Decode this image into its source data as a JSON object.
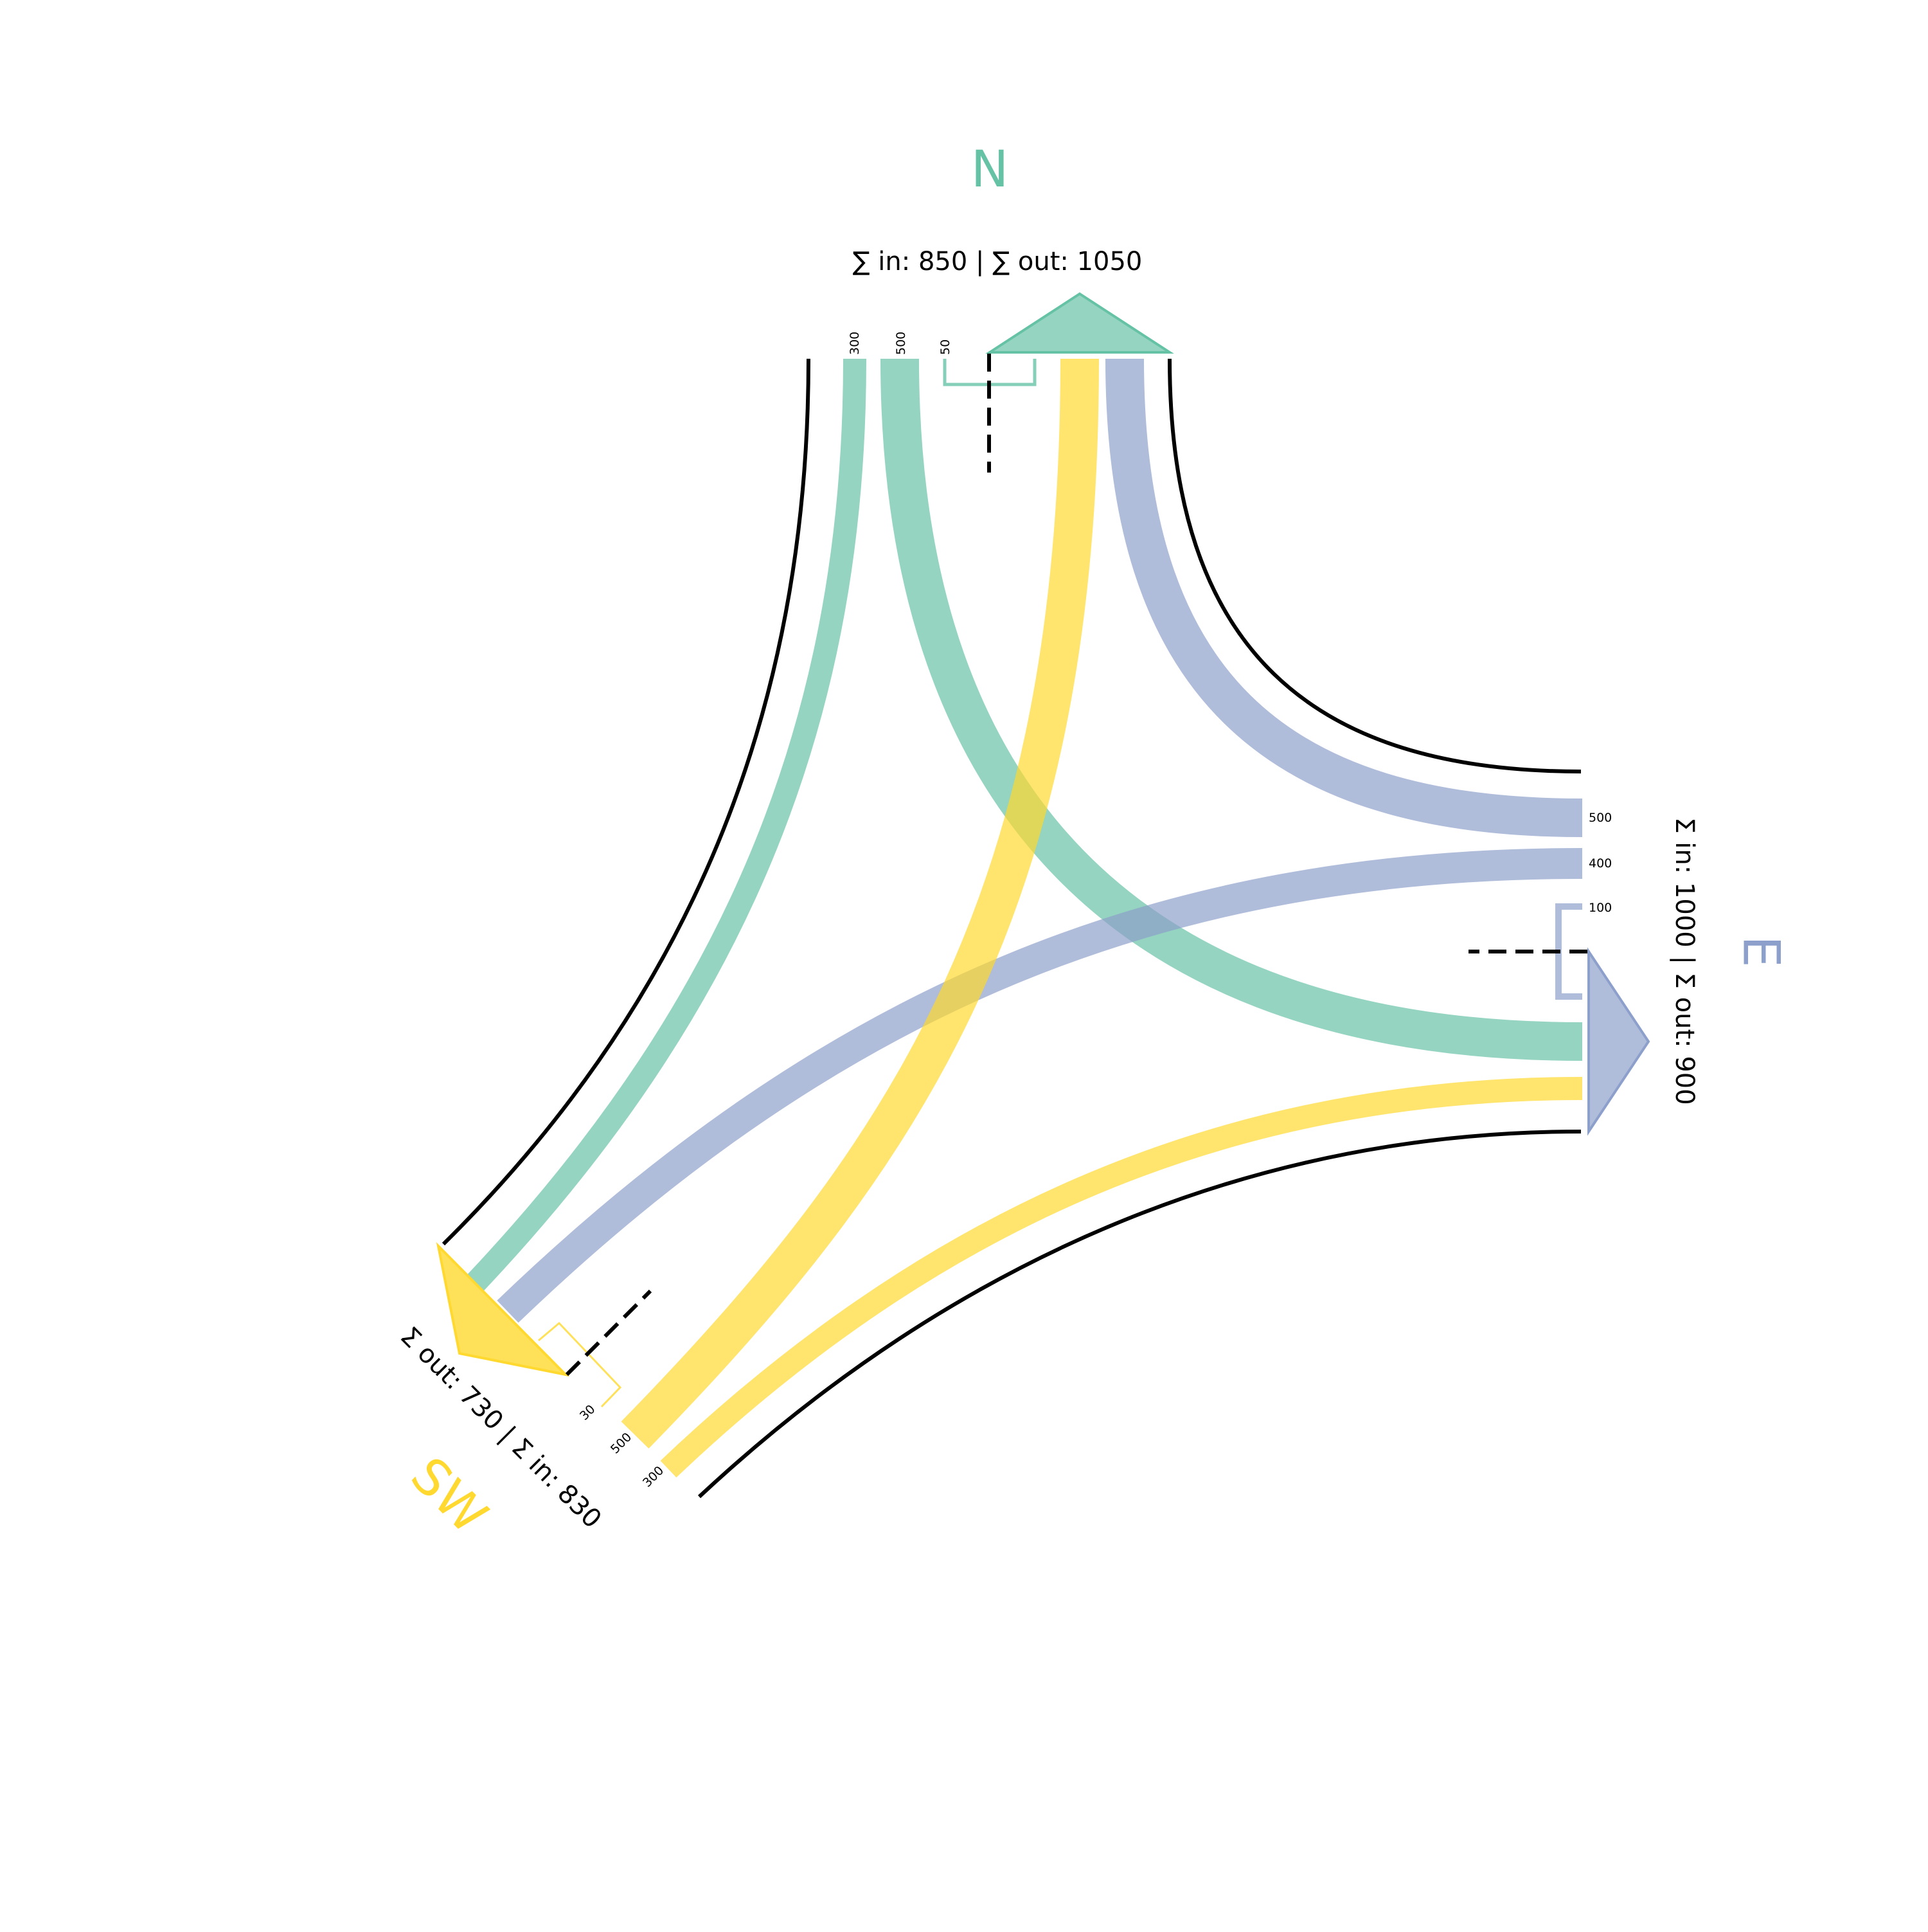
{
  "colors": {
    "N": "#66c2a5",
    "E": "#8da0cb",
    "SW": "#ffd92f",
    "text": "#000000"
  },
  "arms": [
    {
      "id": "N",
      "label": "N",
      "sum_text": "∑ in: 850 | ∑ out: 1050",
      "sum_in": 850,
      "sum_out": 1050
    },
    {
      "id": "E",
      "label": "E",
      "sum_text": "Σ in: 1000 | Σ out: 900",
      "sum_in": 1000,
      "sum_out": 900
    },
    {
      "id": "SW",
      "label": "SW",
      "sum_text": "Σ out: 730 | Σ in: 830",
      "sum_in": 830,
      "sum_out": 730
    }
  ],
  "flows": [
    {
      "from": "N",
      "to": "SW",
      "value": 300,
      "label": "300"
    },
    {
      "from": "N",
      "to": "E",
      "value": 500,
      "label": "500"
    },
    {
      "from": "N",
      "to": "N",
      "value": 50,
      "label": "50"
    },
    {
      "from": "E",
      "to": "N",
      "value": 500,
      "label": "500"
    },
    {
      "from": "E",
      "to": "SW",
      "value": 400,
      "label": "400"
    },
    {
      "from": "E",
      "to": "E",
      "value": 100,
      "label": "100"
    },
    {
      "from": "SW",
      "to": "N",
      "value": 500,
      "label": "500"
    },
    {
      "from": "SW",
      "to": "E",
      "value": 300,
      "label": "300"
    },
    {
      "from": "SW",
      "to": "SW",
      "value": 30,
      "label": "30"
    }
  ]
}
